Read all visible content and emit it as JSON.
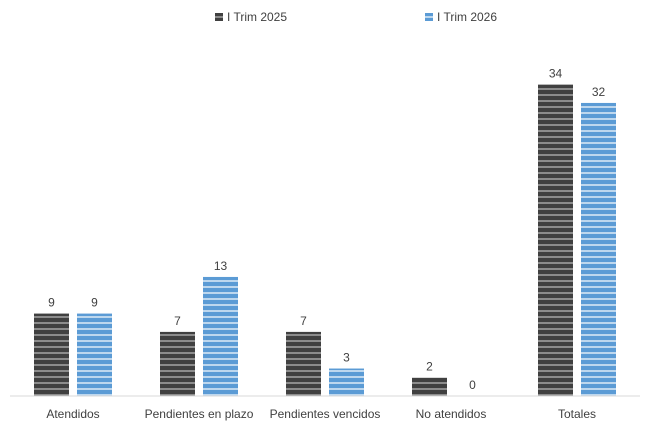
{
  "chart_data": {
    "type": "bar",
    "categories": [
      "Atendidos",
      "Pendientes en plazo",
      "Pendientes vencidos",
      "No atendidos",
      "Totales"
    ],
    "series": [
      {
        "name": "I Trim 2025",
        "values": [
          9,
          7,
          7,
          2,
          34
        ],
        "color": "#404040",
        "stripe_color": "#8c8c8c"
      },
      {
        "name": "I Trim 2026",
        "values": [
          9,
          13,
          3,
          0,
          32
        ],
        "color": "#5b9bd5",
        "stripe_color": "#bdd7ee"
      }
    ],
    "title": "",
    "xlabel": "",
    "ylabel": "",
    "ylim": [
      0,
      38
    ],
    "legend": "top-center",
    "grid": false,
    "data_labels": true,
    "pattern": "horizontal-stripes"
  }
}
